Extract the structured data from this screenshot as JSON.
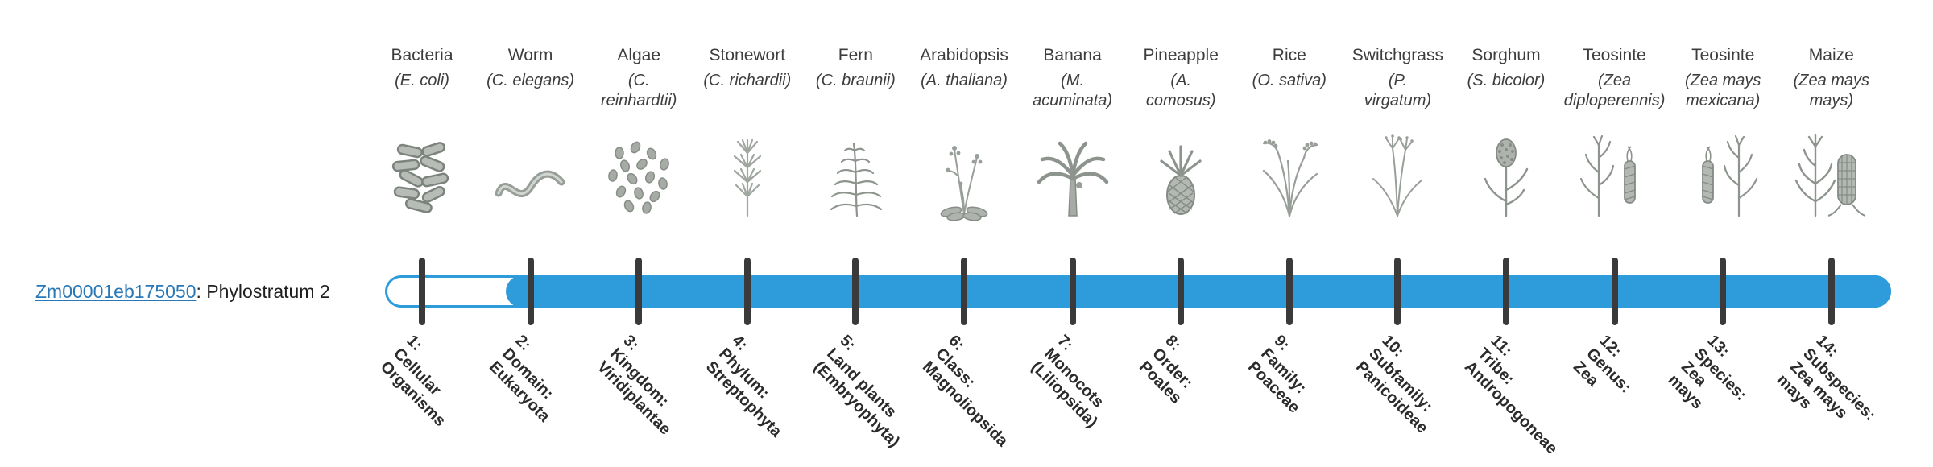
{
  "gene": {
    "id_link": "Zm00001eb175050",
    "suffix": ": Phylostratum 2",
    "phylostratum": 2
  },
  "colors": {
    "bar_blue": "#2E9BDB",
    "tick_dark": "#3A3A3A",
    "link_blue": "#2878B8",
    "text_dark": "#3D3D3D",
    "stratum_text": "#2B2B2B"
  },
  "chart_data": {
    "type": "timeline",
    "title": "",
    "gene_id": "Zm00001eb175050",
    "assigned_phylostratum": 2,
    "bar_filled_from_stratum": 2,
    "bar_filled_to_stratum": 14,
    "legend_position": "none",
    "organisms": [
      {
        "name": "Bacteria",
        "sci_lines": [
          "(E. coli)"
        ],
        "icon": "bacteria"
      },
      {
        "name": "Worm",
        "sci_lines": [
          "(C. elegans)"
        ],
        "icon": "worm"
      },
      {
        "name": "Algae",
        "sci_lines": [
          "(C.",
          "reinhardtii)"
        ],
        "icon": "algae"
      },
      {
        "name": "Stonewort",
        "sci_lines": [
          "(C. richardii)"
        ],
        "icon": "stonewort"
      },
      {
        "name": "Fern",
        "sci_lines": [
          "(C. braunii)"
        ],
        "icon": "fern"
      },
      {
        "name": "Arabidopsis",
        "sci_lines": [
          "(A. thaliana)"
        ],
        "icon": "arabidopsis"
      },
      {
        "name": "Banana",
        "sci_lines": [
          "(M.",
          "acuminata)"
        ],
        "icon": "banana"
      },
      {
        "name": "Pineapple",
        "sci_lines": [
          "(A.",
          "comosus)"
        ],
        "icon": "pineapple"
      },
      {
        "name": "Rice",
        "sci_lines": [
          "(O. sativa)"
        ],
        "icon": "rice"
      },
      {
        "name": "Switchgrass",
        "sci_lines": [
          "(P.",
          "virgatum)"
        ],
        "icon": "switchgrass"
      },
      {
        "name": "Sorghum",
        "sci_lines": [
          "(S. bicolor)"
        ],
        "icon": "sorghum"
      },
      {
        "name": "Teosinte",
        "sci_lines": [
          "(Zea",
          "diploperennis)"
        ],
        "icon": "teosinte"
      },
      {
        "name": "Teosinte",
        "sci_lines": [
          "(Zea mays",
          "mexicana)"
        ],
        "icon": "teosinte-2"
      },
      {
        "name": "Maize",
        "sci_lines": [
          "(Zea mays",
          "mays)"
        ],
        "icon": "maize"
      }
    ],
    "strata": [
      {
        "lines": [
          "1:",
          "Cellular",
          "Organisms"
        ]
      },
      {
        "lines": [
          "2:",
          "Domain:",
          "Eukaryota"
        ]
      },
      {
        "lines": [
          "3:",
          "Kingdom:",
          "Viridiplantae"
        ]
      },
      {
        "lines": [
          "4:",
          "Phylum:",
          "Streptophyta"
        ]
      },
      {
        "lines": [
          "5:",
          "Land plants",
          "(Embryophyta)"
        ]
      },
      {
        "lines": [
          "6:",
          "Class:",
          "Magnoliopsida"
        ]
      },
      {
        "lines": [
          "7:",
          "Monocots",
          "(Liliopsida)"
        ]
      },
      {
        "lines": [
          "8:",
          "Order:",
          "Poales"
        ]
      },
      {
        "lines": [
          "9:",
          "Family:",
          "Poaceae"
        ]
      },
      {
        "lines": [
          "10:",
          "Subfamily:",
          "Panicoideae"
        ]
      },
      {
        "lines": [
          "11:",
          "Tribe:",
          "Andropogoneae"
        ]
      },
      {
        "lines": [
          "12:",
          "Genus:",
          "Zea"
        ]
      },
      {
        "lines": [
          "13:",
          "Species:",
          "Zea",
          "mays"
        ]
      },
      {
        "lines": [
          "14:",
          "Subspecies:",
          "Zea mays",
          "mays"
        ]
      }
    ]
  }
}
